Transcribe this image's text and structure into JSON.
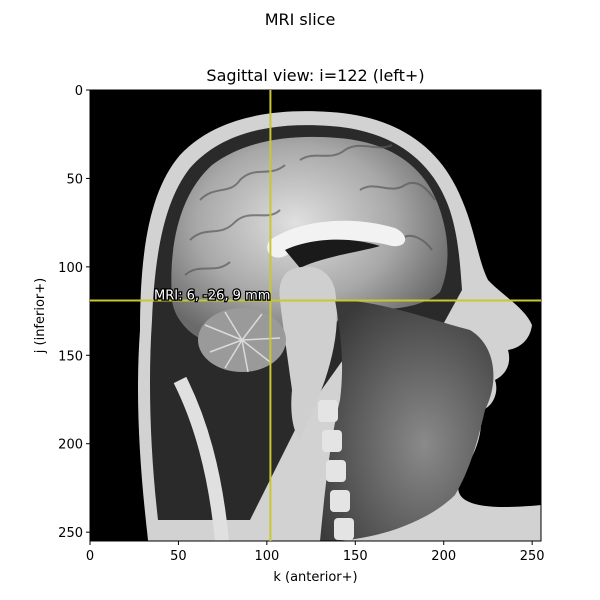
{
  "figure": {
    "title": "MRI slice"
  },
  "axes": {
    "title": "Sagittal view: i=122 (left+)",
    "xlabel": "k (anterior+)",
    "ylabel": "j (inferior+)",
    "xlim": [
      0,
      255
    ],
    "ylim": [
      255,
      0
    ],
    "xticks": [
      0,
      50,
      100,
      150,
      200,
      250
    ],
    "yticks": [
      0,
      50,
      100,
      150,
      200,
      250
    ]
  },
  "crosshair": {
    "k": 102,
    "j": 119,
    "color": "#c8c832"
  },
  "annotation": {
    "text": "MRI: 6, -26, 9 mm",
    "color": "#ffffff"
  },
  "image": {
    "description_colors": {
      "background": "#000000",
      "tissue": "#bdbdbd"
    }
  }
}
